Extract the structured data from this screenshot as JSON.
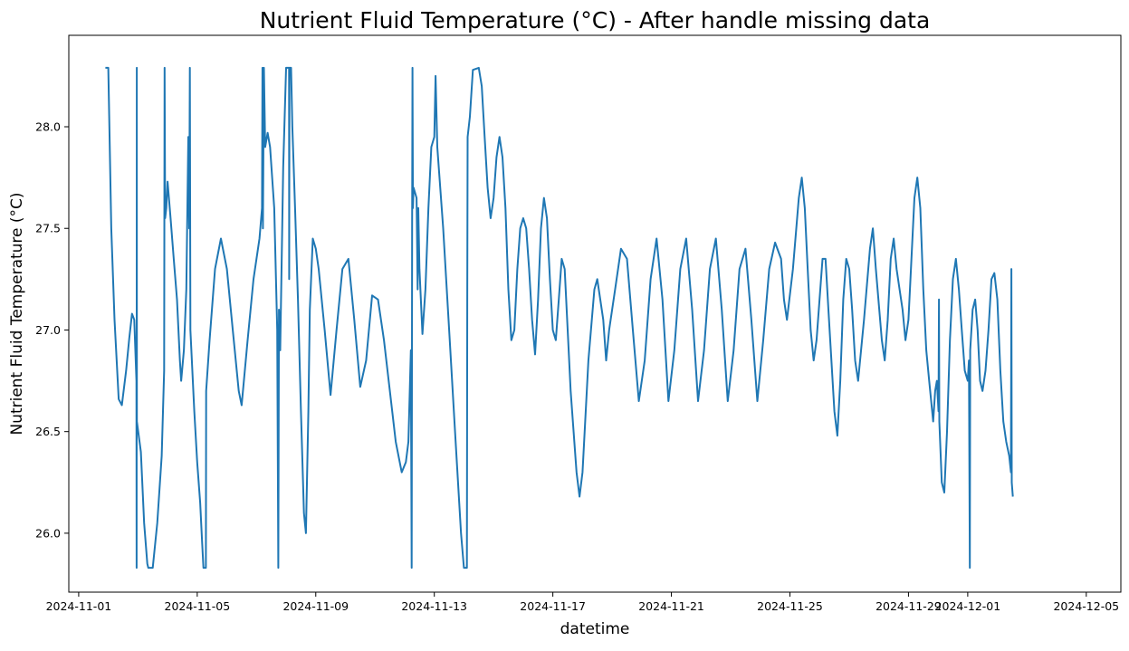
{
  "chart_data": {
    "type": "line",
    "title": "Nutrient Fluid Temperature (°C) - After handle missing data",
    "xlabel": "datetime",
    "ylabel": "Nutrient Fluid Temperature (°C)",
    "xlim": [
      "2024-10-31T16:00",
      "2024-12-06T04:00"
    ],
    "ylim": [
      25.71,
      28.45
    ],
    "x_ticks": [
      "2024-11-01",
      "2024-11-05",
      "2024-11-09",
      "2024-11-13",
      "2024-11-17",
      "2024-11-21",
      "2024-11-25",
      "2024-11-29",
      "2024-12-01",
      "2024-12-05"
    ],
    "y_ticks": [
      "26.0",
      "26.5",
      "27.0",
      "27.5",
      "28.0"
    ],
    "grid": false,
    "legend": "none",
    "line_color": "#1f77b4",
    "points": [
      [
        "2024-11-01T21:36",
        28.29
      ],
      [
        "2024-11-02T00:00",
        28.29
      ],
      [
        "2024-11-02T00:24",
        28.15
      ],
      [
        "2024-11-02T02:24",
        27.5
      ],
      [
        "2024-11-02T05:00",
        27.05
      ],
      [
        "2024-11-02T08:24",
        26.66
      ],
      [
        "2024-11-02T11:00",
        26.63
      ],
      [
        "2024-11-02T14:24",
        26.8
      ],
      [
        "2024-11-02T17:00",
        26.96
      ],
      [
        "2024-11-02T19:12",
        27.08
      ],
      [
        "2024-11-02T21:00",
        27.05
      ],
      [
        "2024-11-02T22:48",
        26.75
      ],
      [
        "2024-11-02T22:55",
        25.83
      ],
      [
        "2024-11-02T23:02",
        28.29
      ],
      [
        "2024-11-02T23:10",
        26.55
      ],
      [
        "2024-11-03T02:24",
        26.4
      ],
      [
        "2024-11-03T05:00",
        26.05
      ],
      [
        "2024-11-03T07:36",
        25.85
      ],
      [
        "2024-11-03T08:24",
        25.83
      ],
      [
        "2024-11-03T12:00",
        25.83
      ],
      [
        "2024-11-03T15:36",
        26.05
      ],
      [
        "2024-11-03T19:12",
        26.38
      ],
      [
        "2024-11-03T21:12",
        26.8
      ],
      [
        "2024-11-03T21:36",
        28.29
      ],
      [
        "2024-11-03T22:00",
        27.55
      ],
      [
        "2024-11-03T23:00",
        27.6
      ],
      [
        "2024-11-04T00:00",
        27.73
      ],
      [
        "2024-11-04T02:24",
        27.55
      ],
      [
        "2024-11-04T05:00",
        27.35
      ],
      [
        "2024-11-04T07:36",
        27.15
      ],
      [
        "2024-11-04T10:00",
        26.85
      ],
      [
        "2024-11-04T11:00",
        26.75
      ],
      [
        "2024-11-04T13:12",
        26.9
      ],
      [
        "2024-11-04T15:12",
        27.2
      ],
      [
        "2024-11-04T16:48",
        27.95
      ],
      [
        "2024-11-04T17:30",
        27.5
      ],
      [
        "2024-11-04T18:00",
        28.29
      ],
      [
        "2024-11-04T18:30",
        27.0
      ],
      [
        "2024-11-04T21:36",
        26.6
      ],
      [
        "2024-11-05T00:00",
        26.35
      ],
      [
        "2024-11-05T02:24",
        26.15
      ],
      [
        "2024-11-05T04:00",
        25.95
      ],
      [
        "2024-11-05T05:00",
        25.83
      ],
      [
        "2024-11-05T07:00",
        25.83
      ],
      [
        "2024-11-05T07:12",
        26.7
      ],
      [
        "2024-11-05T10:00",
        26.95
      ],
      [
        "2024-11-05T14:24",
        27.3
      ],
      [
        "2024-11-05T19:12",
        27.45
      ],
      [
        "2024-11-06T00:00",
        27.3
      ],
      [
        "2024-11-06T04:48",
        27.0
      ],
      [
        "2024-11-06T09:36",
        26.7
      ],
      [
        "2024-11-06T12:00",
        26.63
      ],
      [
        "2024-11-06T16:48",
        26.95
      ],
      [
        "2024-11-06T21:36",
        27.25
      ],
      [
        "2024-11-07T02:24",
        27.45
      ],
      [
        "2024-11-07T04:30",
        27.6
      ],
      [
        "2024-11-07T04:50",
        28.29
      ],
      [
        "2024-11-07T05:10",
        27.5
      ],
      [
        "2024-11-07T06:00",
        28.29
      ],
      [
        "2024-11-07T07:00",
        27.9
      ],
      [
        "2024-11-07T09:00",
        27.97
      ],
      [
        "2024-11-07T11:00",
        27.9
      ],
      [
        "2024-11-07T14:24",
        27.6
      ],
      [
        "2024-11-07T16:48",
        27.0
      ],
      [
        "2024-11-07T17:40",
        25.83
      ],
      [
        "2024-11-07T18:10",
        27.1
      ],
      [
        "2024-11-07T19:12",
        26.9
      ],
      [
        "2024-11-07T21:36",
        27.8
      ],
      [
        "2024-11-08T00:00",
        28.29
      ],
      [
        "2024-11-08T02:24",
        28.29
      ],
      [
        "2024-11-08T02:30",
        27.25
      ],
      [
        "2024-11-08T02:40",
        28.29
      ],
      [
        "2024-11-08T04:00",
        28.29
      ],
      [
        "2024-11-08T05:00",
        28.0
      ],
      [
        "2024-11-08T07:12",
        27.6
      ],
      [
        "2024-11-08T09:36",
        27.15
      ],
      [
        "2024-11-08T12:00",
        26.6
      ],
      [
        "2024-11-08T14:24",
        26.1
      ],
      [
        "2024-11-08T16:00",
        26.0
      ],
      [
        "2024-11-08T18:00",
        26.6
      ],
      [
        "2024-11-08T19:12",
        27.1
      ],
      [
        "2024-11-08T21:36",
        27.45
      ],
      [
        "2024-11-09T00:00",
        27.4
      ],
      [
        "2024-11-09T02:24",
        27.3
      ],
      [
        "2024-11-09T07:12",
        27.0
      ],
      [
        "2024-11-09T12:00",
        26.68
      ],
      [
        "2024-11-09T16:48",
        27.0
      ],
      [
        "2024-11-09T21:36",
        27.3
      ],
      [
        "2024-11-10T02:24",
        27.35
      ],
      [
        "2024-11-10T07:12",
        27.05
      ],
      [
        "2024-11-10T12:00",
        26.72
      ],
      [
        "2024-11-10T16:48",
        26.85
      ],
      [
        "2024-11-10T21:36",
        27.17
      ],
      [
        "2024-11-11T02:24",
        27.15
      ],
      [
        "2024-11-11T07:12",
        26.95
      ],
      [
        "2024-11-11T12:00",
        26.7
      ],
      [
        "2024-11-11T16:48",
        26.45
      ],
      [
        "2024-11-11T21:36",
        26.3
      ],
      [
        "2024-11-12T01:00",
        26.35
      ],
      [
        "2024-11-12T03:00",
        26.45
      ],
      [
        "2024-11-12T05:00",
        26.9
      ],
      [
        "2024-11-12T05:40",
        25.83
      ],
      [
        "2024-11-12T06:00",
        27.5
      ],
      [
        "2024-11-12T06:20",
        28.29
      ],
      [
        "2024-11-12T06:40",
        27.6
      ],
      [
        "2024-11-12T07:12",
        27.7
      ],
      [
        "2024-11-12T09:36",
        27.65
      ],
      [
        "2024-11-12T10:30",
        27.2
      ],
      [
        "2024-11-12T11:00",
        27.6
      ],
      [
        "2024-11-12T12:00",
        27.3
      ],
      [
        "2024-11-12T14:24",
        26.98
      ],
      [
        "2024-11-12T16:48",
        27.2
      ],
      [
        "2024-11-12T19:12",
        27.6
      ],
      [
        "2024-11-12T21:36",
        27.9
      ],
      [
        "2024-11-13T00:00",
        27.95
      ],
      [
        "2024-11-13T01:00",
        28.25
      ],
      [
        "2024-11-13T02:24",
        27.9
      ],
      [
        "2024-11-13T07:12",
        27.5
      ],
      [
        "2024-11-13T12:00",
        27.0
      ],
      [
        "2024-11-13T16:48",
        26.5
      ],
      [
        "2024-11-13T21:36",
        26.0
      ],
      [
        "2024-11-14T00:00",
        25.83
      ],
      [
        "2024-11-14T02:24",
        25.83
      ],
      [
        "2024-11-14T02:40",
        27.15
      ],
      [
        "2024-11-14T03:00",
        27.95
      ],
      [
        "2024-11-14T04:48",
        28.05
      ],
      [
        "2024-11-14T07:12",
        28.28
      ],
      [
        "2024-11-14T12:00",
        28.29
      ],
      [
        "2024-11-14T14:24",
        28.2
      ],
      [
        "2024-11-14T16:48",
        27.95
      ],
      [
        "2024-11-14T19:12",
        27.7
      ],
      [
        "2024-11-14T21:36",
        27.55
      ],
      [
        "2024-11-15T00:00",
        27.65
      ],
      [
        "2024-11-15T02:24",
        27.85
      ],
      [
        "2024-11-15T04:48",
        27.95
      ],
      [
        "2024-11-15T07:12",
        27.85
      ],
      [
        "2024-11-15T09:36",
        27.6
      ],
      [
        "2024-11-15T12:00",
        27.2
      ],
      [
        "2024-11-15T14:24",
        26.95
      ],
      [
        "2024-11-15T16:48",
        27.0
      ],
      [
        "2024-11-15T19:12",
        27.3
      ],
      [
        "2024-11-15T21:36",
        27.5
      ],
      [
        "2024-11-16T00:00",
        27.55
      ],
      [
        "2024-11-16T02:24",
        27.5
      ],
      [
        "2024-11-16T04:48",
        27.3
      ],
      [
        "2024-11-16T07:12",
        27.05
      ],
      [
        "2024-11-16T09:36",
        26.88
      ],
      [
        "2024-11-16T12:00",
        27.15
      ],
      [
        "2024-11-16T14:24",
        27.5
      ],
      [
        "2024-11-16T16:48",
        27.65
      ],
      [
        "2024-11-16T19:12",
        27.55
      ],
      [
        "2024-11-16T21:36",
        27.25
      ],
      [
        "2024-11-17T00:00",
        27.0
      ],
      [
        "2024-11-17T02:24",
        26.95
      ],
      [
        "2024-11-17T04:48",
        27.15
      ],
      [
        "2024-11-17T07:12",
        27.35
      ],
      [
        "2024-11-17T09:36",
        27.3
      ],
      [
        "2024-11-17T12:00",
        27.0
      ],
      [
        "2024-11-17T14:24",
        26.7
      ],
      [
        "2024-11-17T19:12",
        26.3
      ],
      [
        "2024-11-17T21:36",
        26.18
      ],
      [
        "2024-11-18T00:00",
        26.3
      ],
      [
        "2024-11-18T04:48",
        26.85
      ],
      [
        "2024-11-18T09:36",
        27.2
      ],
      [
        "2024-11-18T12:00",
        27.25
      ],
      [
        "2024-11-18T16:48",
        27.05
      ],
      [
        "2024-11-18T19:12",
        26.85
      ],
      [
        "2024-11-18T21:36",
        27.0
      ],
      [
        "2024-11-19T02:24",
        27.2
      ],
      [
        "2024-11-19T07:12",
        27.4
      ],
      [
        "2024-11-19T12:00",
        27.35
      ],
      [
        "2024-11-19T16:48",
        27.0
      ],
      [
        "2024-11-19T21:36",
        26.65
      ],
      [
        "2024-11-20T02:24",
        26.85
      ],
      [
        "2024-11-20T07:12",
        27.25
      ],
      [
        "2024-11-20T12:00",
        27.45
      ],
      [
        "2024-11-20T16:48",
        27.15
      ],
      [
        "2024-11-20T21:36",
        26.65
      ],
      [
        "2024-11-21T02:24",
        26.9
      ],
      [
        "2024-11-21T07:12",
        27.3
      ],
      [
        "2024-11-21T12:00",
        27.45
      ],
      [
        "2024-11-21T16:48",
        27.1
      ],
      [
        "2024-11-21T21:36",
        26.65
      ],
      [
        "2024-11-22T02:24",
        26.9
      ],
      [
        "2024-11-22T07:12",
        27.3
      ],
      [
        "2024-11-22T12:00",
        27.45
      ],
      [
        "2024-11-22T16:48",
        27.1
      ],
      [
        "2024-11-22T21:36",
        26.65
      ],
      [
        "2024-11-23T02:24",
        26.9
      ],
      [
        "2024-11-23T07:12",
        27.3
      ],
      [
        "2024-11-23T12:00",
        27.4
      ],
      [
        "2024-11-23T16:48",
        27.05
      ],
      [
        "2024-11-23T21:36",
        26.65
      ],
      [
        "2024-11-24T02:24",
        26.95
      ],
      [
        "2024-11-24T07:12",
        27.3
      ],
      [
        "2024-11-24T12:00",
        27.43
      ],
      [
        "2024-11-24T16:48",
        27.35
      ],
      [
        "2024-11-24T19:12",
        27.15
      ],
      [
        "2024-11-24T21:36",
        27.05
      ],
      [
        "2024-11-25T02:24",
        27.3
      ],
      [
        "2024-11-25T07:12",
        27.65
      ],
      [
        "2024-11-25T09:36",
        27.75
      ],
      [
        "2024-11-25T12:00",
        27.6
      ],
      [
        "2024-11-25T14:24",
        27.3
      ],
      [
        "2024-11-25T16:48",
        27.0
      ],
      [
        "2024-11-25T19:12",
        26.85
      ],
      [
        "2024-11-25T21:36",
        26.95
      ],
      [
        "2024-11-26T00:00",
        27.15
      ],
      [
        "2024-11-26T02:24",
        27.35
      ],
      [
        "2024-11-26T04:48",
        27.35
      ],
      [
        "2024-11-26T07:12",
        27.1
      ],
      [
        "2024-11-26T09:36",
        26.85
      ],
      [
        "2024-11-26T12:00",
        26.6
      ],
      [
        "2024-11-26T14:24",
        26.48
      ],
      [
        "2024-11-26T16:48",
        26.75
      ],
      [
        "2024-11-26T19:12",
        27.15
      ],
      [
        "2024-11-26T21:36",
        27.35
      ],
      [
        "2024-11-27T00:00",
        27.3
      ],
      [
        "2024-11-27T02:24",
        27.1
      ],
      [
        "2024-11-27T04:48",
        26.85
      ],
      [
        "2024-11-27T07:12",
        26.75
      ],
      [
        "2024-11-27T12:00",
        27.05
      ],
      [
        "2024-11-27T16:48",
        27.4
      ],
      [
        "2024-11-27T19:12",
        27.5
      ],
      [
        "2024-11-27T21:36",
        27.3
      ],
      [
        "2024-11-28T02:24",
        26.95
      ],
      [
        "2024-11-28T04:48",
        26.85
      ],
      [
        "2024-11-28T07:12",
        27.05
      ],
      [
        "2024-11-28T09:36",
        27.35
      ],
      [
        "2024-11-28T12:00",
        27.45
      ],
      [
        "2024-11-28T14:24",
        27.3
      ],
      [
        "2024-11-28T16:48",
        27.2
      ],
      [
        "2024-11-28T19:12",
        27.1
      ],
      [
        "2024-11-28T21:36",
        26.95
      ],
      [
        "2024-11-29T00:00",
        27.05
      ],
      [
        "2024-11-29T02:24",
        27.35
      ],
      [
        "2024-11-29T04:48",
        27.65
      ],
      [
        "2024-11-29T07:12",
        27.75
      ],
      [
        "2024-11-29T09:36",
        27.6
      ],
      [
        "2024-11-29T12:00",
        27.2
      ],
      [
        "2024-11-29T14:24",
        26.9
      ],
      [
        "2024-11-29T16:48",
        26.75
      ],
      [
        "2024-11-29T19:12",
        26.6
      ],
      [
        "2024-11-29T20:00",
        26.55
      ],
      [
        "2024-11-29T21:36",
        26.7
      ],
      [
        "2024-11-29T23:00",
        26.75
      ],
      [
        "2024-11-30T00:20",
        26.6
      ],
      [
        "2024-11-30T00:40",
        27.15
      ],
      [
        "2024-11-30T01:00",
        26.55
      ],
      [
        "2024-11-30T03:00",
        26.25
      ],
      [
        "2024-11-30T05:00",
        26.2
      ],
      [
        "2024-11-30T07:12",
        26.5
      ],
      [
        "2024-11-30T09:36",
        26.95
      ],
      [
        "2024-11-30T12:00",
        27.25
      ],
      [
        "2024-11-30T14:24",
        27.35
      ],
      [
        "2024-11-30T16:48",
        27.2
      ],
      [
        "2024-11-30T19:12",
        27.0
      ],
      [
        "2024-11-30T21:36",
        26.8
      ],
      [
        "2024-12-01T00:00",
        26.75
      ],
      [
        "2024-12-01T01:00",
        26.85
      ],
      [
        "2024-12-01T01:40",
        25.83
      ],
      [
        "2024-12-01T02:00",
        26.9
      ],
      [
        "2024-12-01T04:00",
        27.1
      ],
      [
        "2024-12-01T06:00",
        27.15
      ],
      [
        "2024-12-01T08:00",
        27.0
      ],
      [
        "2024-12-01T10:00",
        26.75
      ],
      [
        "2024-12-01T12:00",
        26.7
      ],
      [
        "2024-12-01T14:24",
        26.8
      ],
      [
        "2024-12-01T16:48",
        27.0
      ],
      [
        "2024-12-01T19:12",
        27.25
      ],
      [
        "2024-12-01T21:36",
        27.28
      ],
      [
        "2024-12-02T00:00",
        27.15
      ],
      [
        "2024-12-02T02:24",
        26.8
      ],
      [
        "2024-12-02T04:48",
        26.55
      ],
      [
        "2024-12-02T07:12",
        26.45
      ],
      [
        "2024-12-02T09:36",
        26.38
      ],
      [
        "2024-12-02T11:00",
        26.3
      ],
      [
        "2024-12-02T11:20",
        27.3
      ],
      [
        "2024-12-02T11:40",
        26.25
      ],
      [
        "2024-12-02T12:30",
        26.18
      ]
    ]
  }
}
